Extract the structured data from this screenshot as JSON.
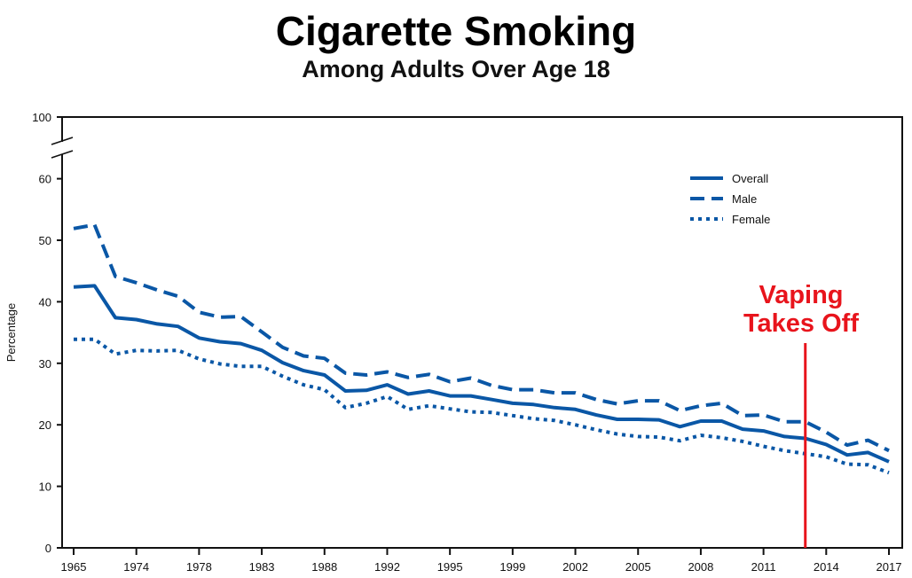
{
  "chart_data": {
    "type": "line",
    "title": "Cigarette Smoking",
    "subtitle": "Among Adults Over Age 18",
    "xlabel": "",
    "ylabel": "Percentage",
    "ylim": [
      0,
      60
    ],
    "y_break_top_label": "100",
    "yticks": [
      0,
      10,
      20,
      30,
      40,
      50,
      60
    ],
    "x": [
      1965,
      1966,
      1970,
      1974,
      1976,
      1977,
      1978,
      1979,
      1980,
      1983,
      1985,
      1987,
      1988,
      1990,
      1991,
      1992,
      1993,
      1994,
      1995,
      1997,
      1998,
      1999,
      2000,
      2001,
      2002,
      2003,
      2004,
      2005,
      2006,
      2007,
      2008,
      2009,
      2010,
      2011,
      2012,
      2013,
      2014,
      2015,
      2016,
      2017
    ],
    "xtick_labels": [
      "1965",
      "1974",
      "1978",
      "1983",
      "1988",
      "1992",
      "1995",
      "1999",
      "2002",
      "2005",
      "2008",
      "2011",
      "2014",
      "2017"
    ],
    "grid": false,
    "legend_position": "top-right",
    "series": [
      {
        "name": "Overall",
        "style": "solid",
        "values": [
          42.4,
          42.6,
          37.4,
          37.1,
          36.4,
          36.0,
          34.1,
          33.5,
          33.2,
          32.1,
          30.1,
          28.8,
          28.1,
          25.5,
          25.6,
          26.5,
          25.0,
          25.5,
          24.7,
          24.7,
          24.1,
          23.5,
          23.3,
          22.8,
          22.5,
          21.6,
          20.9,
          20.9,
          20.8,
          19.7,
          20.6,
          20.6,
          19.3,
          19.0,
          18.1,
          17.8,
          16.8,
          15.1,
          15.5,
          14.0
        ]
      },
      {
        "name": "Male",
        "style": "dashed",
        "values": [
          51.9,
          52.5,
          44.1,
          43.1,
          41.9,
          40.9,
          38.3,
          37.5,
          37.6,
          35.1,
          32.6,
          31.2,
          30.8,
          28.4,
          28.1,
          28.6,
          27.7,
          28.2,
          27.0,
          27.6,
          26.4,
          25.7,
          25.7,
          25.2,
          25.2,
          24.1,
          23.4,
          23.9,
          23.9,
          22.3,
          23.1,
          23.5,
          21.5,
          21.6,
          20.5,
          20.5,
          18.8,
          16.7,
          17.5,
          15.8
        ]
      },
      {
        "name": "Female",
        "style": "dotted",
        "values": [
          33.9,
          33.9,
          31.5,
          32.1,
          32.0,
          32.1,
          30.7,
          29.9,
          29.5,
          29.5,
          27.9,
          26.5,
          25.7,
          22.8,
          23.5,
          24.6,
          22.5,
          23.1,
          22.6,
          22.1,
          22.0,
          21.5,
          21.0,
          20.7,
          20.0,
          19.2,
          18.5,
          18.1,
          18.0,
          17.4,
          18.3,
          17.9,
          17.3,
          16.5,
          15.8,
          15.3,
          14.8,
          13.6,
          13.5,
          12.2
        ]
      }
    ],
    "annotation": {
      "text_line1": "Vaping",
      "text_line2": "Takes Off",
      "x": 2013,
      "color": "#e8141c"
    },
    "line_color": "#0a57a6"
  }
}
